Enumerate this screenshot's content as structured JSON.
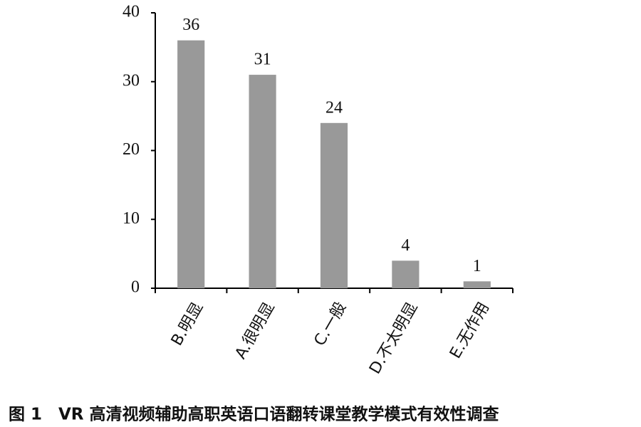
{
  "chart_data": {
    "type": "bar",
    "title": "图 1　VR 高清视频辅助高职英语口语翻转课堂教学模式有效性调查",
    "categories": [
      "B.明显",
      "A.很明显",
      "C.一般",
      "D.不太明显",
      "E.无作用"
    ],
    "values": [
      36,
      31,
      24,
      4,
      1
    ],
    "color": "#999999",
    "ylim": [
      0,
      40
    ],
    "yticks": [
      0,
      10,
      20,
      30,
      40
    ],
    "grid": false
  }
}
